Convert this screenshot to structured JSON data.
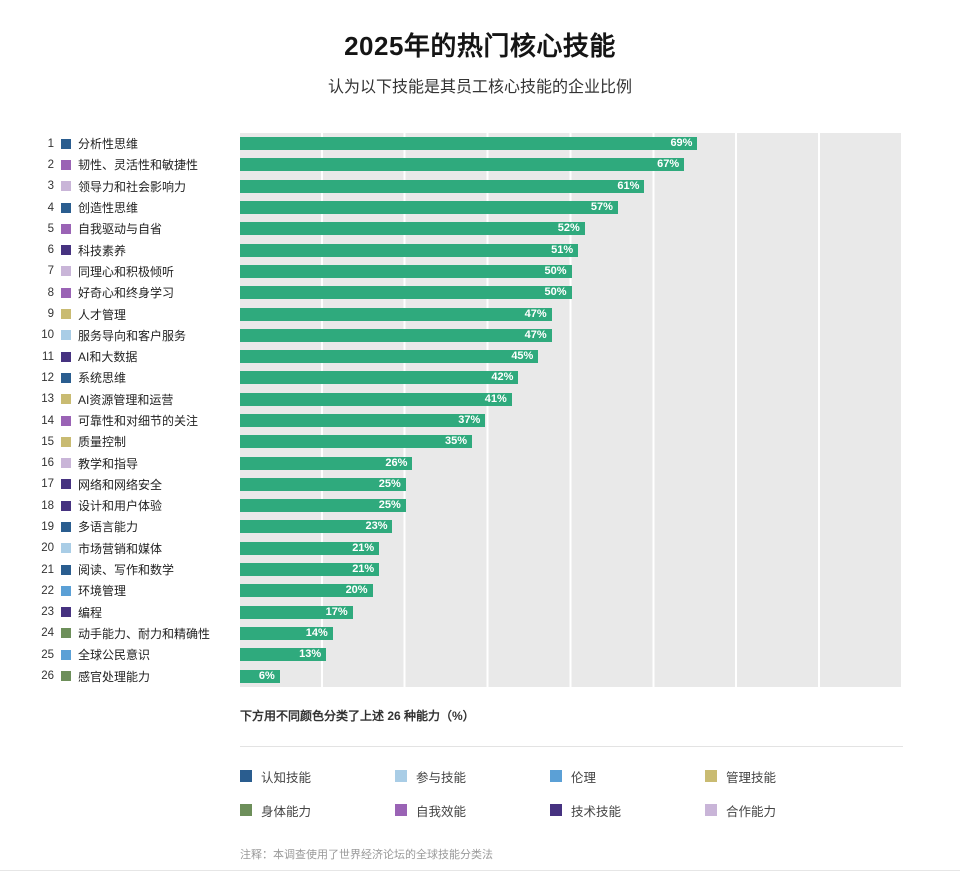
{
  "header": {
    "title": "2025年的热门核心技能",
    "subtitle": "认为以下技能是其员工核心技能的企业比例"
  },
  "chart_data": {
    "type": "bar",
    "orientation": "horizontal",
    "title": "2025年的热门核心技能",
    "subtitle": "认为以下技能是其员工核心技能的企业比例",
    "xlim": [
      0,
      100
    ],
    "gridline_interval_pct": 12.5,
    "grid": "vertical-bands",
    "bar_color": "#2faa7d",
    "value_label_color": "#ffffff",
    "colors": {
      "cognitive": "#2a5d8f",
      "engagement": "#a9cde6",
      "ethics": "#5ba0d6",
      "management": "#c9bb72",
      "physical": "#6d8f5a",
      "self_efficacy": "#9a63b5",
      "technology": "#463280",
      "working_with_others": "#c9b5d8"
    },
    "rows": [
      {
        "rank": 1,
        "label": "分析性思维",
        "value": 69,
        "value_label": "69%",
        "category": "cognitive"
      },
      {
        "rank": 2,
        "label": "韧性、灵活性和敏捷性",
        "value": 67,
        "value_label": "67%",
        "category": "self_efficacy"
      },
      {
        "rank": 3,
        "label": "领导力和社会影响力",
        "value": 61,
        "value_label": "61%",
        "category": "working_with_others"
      },
      {
        "rank": 4,
        "label": "创造性思维",
        "value": 57,
        "value_label": "57%",
        "category": "cognitive"
      },
      {
        "rank": 5,
        "label": "自我驱动与自省",
        "value": 52,
        "value_label": "52%",
        "category": "self_efficacy"
      },
      {
        "rank": 6,
        "label": "科技素养",
        "value": 51,
        "value_label": "51%",
        "category": "technology"
      },
      {
        "rank": 7,
        "label": "同理心和积极倾听",
        "value": 50,
        "value_label": "50%",
        "category": "working_with_others"
      },
      {
        "rank": 8,
        "label": "好奇心和终身学习",
        "value": 50,
        "value_label": "50%",
        "category": "self_efficacy"
      },
      {
        "rank": 9,
        "label": "人才管理",
        "value": 47,
        "value_label": "47%",
        "category": "management"
      },
      {
        "rank": 10,
        "label": "服务导向和客户服务",
        "value": 47,
        "value_label": "47%",
        "category": "engagement"
      },
      {
        "rank": 11,
        "label": "AI和大数据",
        "value": 45,
        "value_label": "45%",
        "category": "technology"
      },
      {
        "rank": 12,
        "label": "系统思维",
        "value": 42,
        "value_label": "42%",
        "category": "cognitive"
      },
      {
        "rank": 13,
        "label": "AI资源管理和运营",
        "value": 41,
        "value_label": "41%",
        "category": "management"
      },
      {
        "rank": 14,
        "label": "可靠性和对细节的关注",
        "value": 37,
        "value_label": "37%",
        "category": "self_efficacy"
      },
      {
        "rank": 15,
        "label": "质量控制",
        "value": 35,
        "value_label": "35%",
        "category": "management"
      },
      {
        "rank": 16,
        "label": "教学和指导",
        "value": 26,
        "value_label": "26%",
        "category": "working_with_others"
      },
      {
        "rank": 17,
        "label": "网络和网络安全",
        "value": 25,
        "value_label": "25%",
        "category": "technology"
      },
      {
        "rank": 18,
        "label": "设计和用户体验",
        "value": 25,
        "value_label": "25%",
        "category": "technology"
      },
      {
        "rank": 19,
        "label": "多语言能力",
        "value": 23,
        "value_label": "23%",
        "category": "cognitive"
      },
      {
        "rank": 20,
        "label": "市场营销和媒体",
        "value": 21,
        "value_label": "21%",
        "category": "engagement"
      },
      {
        "rank": 21,
        "label": "阅读、写作和数学",
        "value": 21,
        "value_label": "21%",
        "category": "cognitive"
      },
      {
        "rank": 22,
        "label": "环境管理",
        "value": 20,
        "value_label": "20%",
        "category": "ethics"
      },
      {
        "rank": 23,
        "label": "编程",
        "value": 17,
        "value_label": "17%",
        "category": "technology"
      },
      {
        "rank": 24,
        "label": "动手能力、耐力和精确性",
        "value": 14,
        "value_label": "14%",
        "category": "physical"
      },
      {
        "rank": 25,
        "label": "全球公民意识",
        "value": 13,
        "value_label": "13%",
        "category": "ethics"
      },
      {
        "rank": 26,
        "label": "感官处理能力",
        "value": 6,
        "value_label": "6%",
        "category": "physical"
      }
    ],
    "legend_position": "bottom"
  },
  "caption": "下方用不同颜色分类了上述 26 种能力（%）",
  "legend": {
    "items": [
      {
        "key": "cognitive",
        "label": "认知技能"
      },
      {
        "key": "engagement",
        "label": "参与技能"
      },
      {
        "key": "ethics",
        "label": "伦理"
      },
      {
        "key": "management",
        "label": "管理技能"
      },
      {
        "key": "physical",
        "label": "身体能力"
      },
      {
        "key": "self_efficacy",
        "label": "自我效能"
      },
      {
        "key": "technology",
        "label": "技术技能"
      },
      {
        "key": "working_with_others",
        "label": "合作能力"
      }
    ]
  },
  "note": "注释：本调查使用了世界经济论坛的全球技能分类法"
}
